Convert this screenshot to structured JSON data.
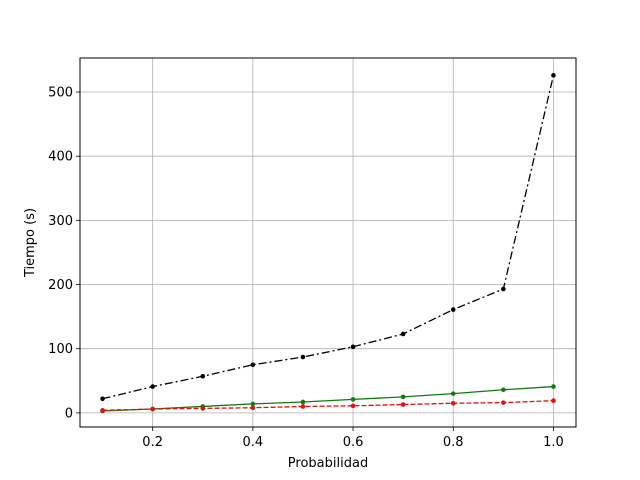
{
  "chart_data": {
    "type": "line",
    "title": "",
    "xlabel": "Probabilidad",
    "ylabel": "Tiempo (s)",
    "xlim": [
      0.055,
      1.045
    ],
    "ylim": [
      -22,
      553
    ],
    "grid": true,
    "x": [
      0.1,
      0.2,
      0.3,
      0.4,
      0.5,
      0.6,
      0.7,
      0.8,
      0.9,
      1.0
    ],
    "xticks": [
      {
        "value": 0.2,
        "label": "0.2"
      },
      {
        "value": 0.4,
        "label": "0.4"
      },
      {
        "value": 0.6,
        "label": "0.6"
      },
      {
        "value": 0.8,
        "label": "0.8"
      },
      {
        "value": 1.0,
        "label": "1.0"
      }
    ],
    "yticks": [
      {
        "value": 0,
        "label": "0"
      },
      {
        "value": 100,
        "label": "100"
      },
      {
        "value": 200,
        "label": "200"
      },
      {
        "value": 300,
        "label": "300"
      },
      {
        "value": 400,
        "label": "400"
      },
      {
        "value": 500,
        "label": "500"
      }
    ],
    "series": [
      {
        "name": "series-black",
        "color": "#000000",
        "dash": "dashdot",
        "values": [
          22,
          41,
          57,
          75,
          87,
          103,
          123,
          161,
          193,
          526
        ]
      },
      {
        "name": "series-green",
        "color": "#107b10",
        "dash": "solid",
        "values": [
          3,
          6,
          10,
          14,
          17,
          21,
          25,
          30,
          36,
          41
        ]
      },
      {
        "name": "series-red",
        "color": "#e41010",
        "dash": "dashed",
        "values": [
          4,
          6,
          7,
          8,
          10,
          11,
          13,
          15,
          16,
          19
        ]
      }
    ]
  }
}
